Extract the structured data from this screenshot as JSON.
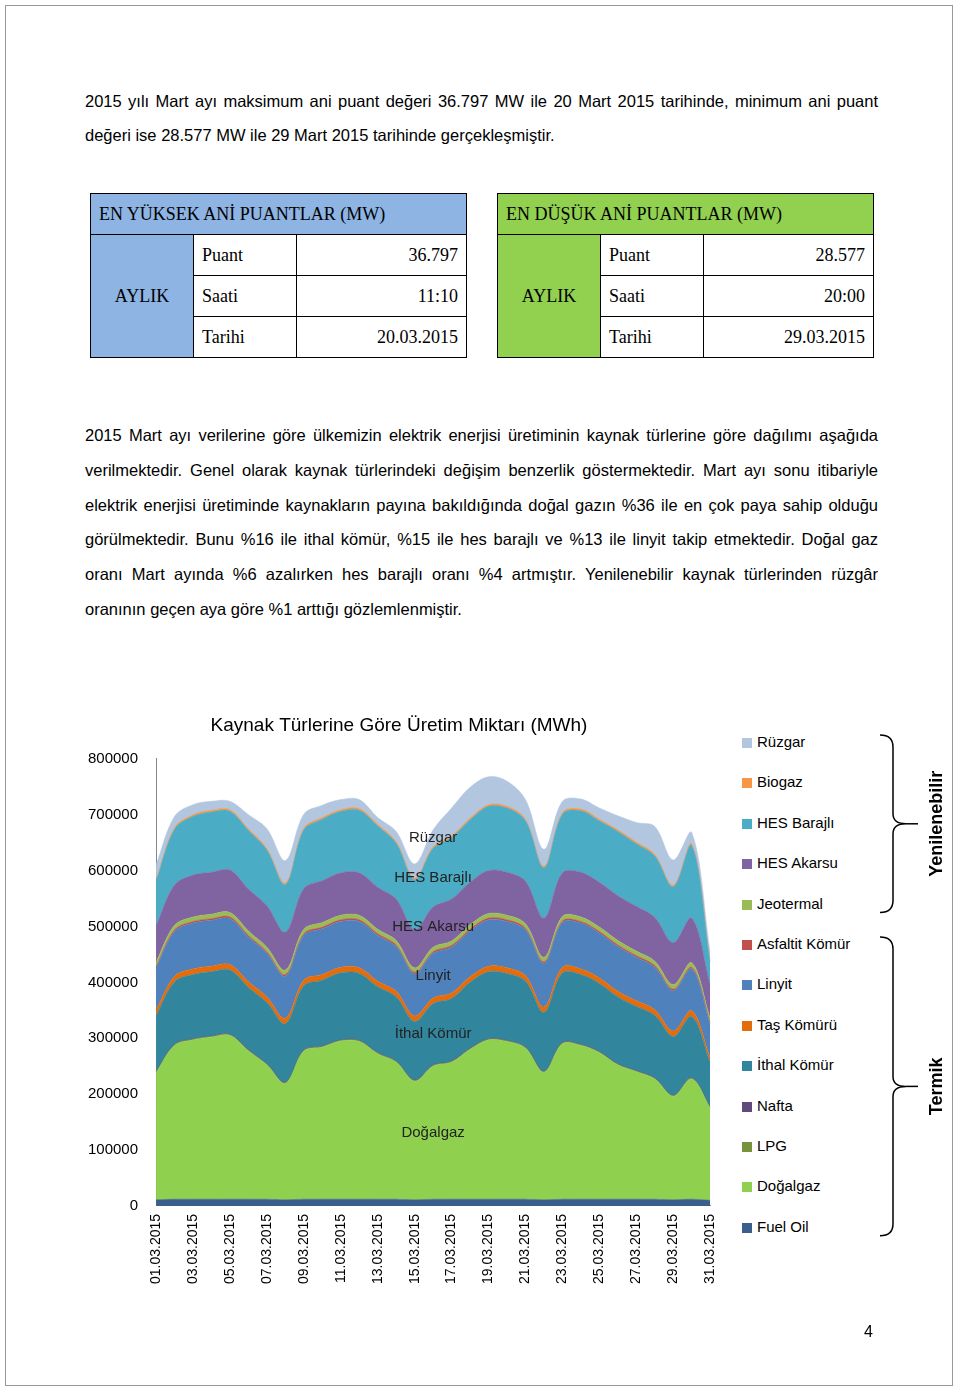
{
  "paragraphs": [
    "2015 yılı Mart ayı maksimum ani puant değeri 36.797 MW ile 20 Mart 2015 tarihinde, minimum ani puant değeri ise 28.577 MW ile 29 Mart 2015 tarihinde gerçekleşmiştir.",
    "2015 Mart ayı verilerine göre ülkemizin elektrik enerjisi üretiminin kaynak türlerine göre dağılımı aşağıda verilmektedir. Genel olarak kaynak türlerindeki değişim benzerlik göstermektedir. Mart ayı sonu itibariyle elektrik enerjisi üretiminde kaynakların payına bakıldığında doğal gazın %36 ile en çok paya sahip olduğu görülmektedir. Bunu %16 ile ithal kömür, %15 ile hes barajlı ve %13 ile linyit takip etmektedir. Doğal gaz oranı Mart ayında %6 azalırken hes barajlı oranı %4 artmıştır. Yenilenebilir kaynak türlerinden rüzgâr oranının geçen aya göre %1 arttığı gözlemlenmiştir."
  ],
  "tables": [
    {
      "title": "EN  YÜKSEK ANİ PUANTLAR (MW)",
      "row_header": "AYLIK",
      "rows": [
        [
          "Puant",
          "36.797"
        ],
        [
          "Saati",
          "11:10"
        ],
        [
          "Tarihi",
          "20.03.2015"
        ]
      ]
    },
    {
      "title": "EN  DÜŞÜK ANİ PUANTLAR (MW)",
      "row_header": "AYLIK",
      "rows": [
        [
          "Puant",
          "28.577"
        ],
        [
          "Saati",
          "20:00"
        ],
        [
          "Tarihi",
          "29.03.2015"
        ]
      ]
    }
  ],
  "chart_data": {
    "type": "area",
    "title": "Kaynak Türlerine Göre Üretim Miktarı (MWh)",
    "stacked": true,
    "grid": false,
    "legend": "right",
    "categories": [
      "01.03.2015",
      null,
      "03.03.2015",
      null,
      "05.03.2015",
      null,
      "07.03.2015",
      null,
      "09.03.2015",
      null,
      "11.03.2015",
      null,
      "13.03.2015",
      null,
      "15.03.2015",
      null,
      "17.03.2015",
      null,
      "19.03.2015",
      null,
      "21.03.2015",
      null,
      "23.03.2015",
      null,
      "25.03.2015",
      null,
      "27.03.2015",
      null,
      "29.03.2015",
      null,
      "31.03.2015"
    ],
    "ylim": [
      0,
      800000
    ],
    "yticks": [
      0,
      100000,
      200000,
      300000,
      400000,
      500000,
      600000,
      700000,
      800000
    ],
    "annotations": [
      "Rüzgar",
      "HES Barajlı",
      "HES Akarsu",
      "Linyit",
      "İthal Kömür",
      "Doğalgaz"
    ],
    "series": [
      {
        "name": "Fuel Oil",
        "color": "#3b5e8c",
        "values": [
          11000,
          12000,
          12000,
          12000,
          12000,
          12000,
          12000,
          11000,
          12000,
          12000,
          12000,
          12000,
          12000,
          12000,
          11000,
          12000,
          12000,
          12000,
          12000,
          12000,
          12000,
          11000,
          12000,
          12000,
          12000,
          12000,
          12000,
          12000,
          11000,
          12000,
          10000
        ]
      },
      {
        "name": "Doğalgaz",
        "color": "#8fd14f",
        "values": [
          227000,
          275000,
          285000,
          290000,
          293000,
          265000,
          240000,
          208000,
          265000,
          272000,
          283000,
          282000,
          260000,
          245000,
          212000,
          238000,
          245000,
          268000,
          285000,
          282000,
          270000,
          228000,
          278000,
          275000,
          262000,
          240000,
          228000,
          215000,
          185000,
          215000,
          165000
        ]
      },
      {
        "name": "LPG",
        "color": "#77933c",
        "values": [
          1000,
          1000,
          1000,
          1000,
          1000,
          1000,
          1000,
          1000,
          1000,
          1000,
          1000,
          1000,
          1000,
          1000,
          1000,
          1000,
          1000,
          1000,
          1000,
          1000,
          1000,
          1000,
          1000,
          1000,
          1000,
          1000,
          1000,
          1000,
          1000,
          1000,
          1000
        ]
      },
      {
        "name": "Nafta",
        "color": "#604a7b",
        "values": [
          1000,
          1000,
          1000,
          1000,
          1000,
          1000,
          1000,
          1000,
          1000,
          1000,
          1000,
          1000,
          1000,
          1000,
          1000,
          1000,
          1000,
          1000,
          1000,
          1000,
          1000,
          1000,
          1000,
          1000,
          1000,
          1000,
          1000,
          1000,
          1000,
          1000,
          1000
        ]
      },
      {
        "name": "İthal Kömür",
        "color": "#31859c",
        "values": [
          100000,
          112000,
          115000,
          115000,
          115000,
          112000,
          110000,
          105000,
          115000,
          118000,
          120000,
          120000,
          118000,
          115000,
          105000,
          110000,
          112000,
          118000,
          120000,
          120000,
          118000,
          105000,
          125000,
          125000,
          122000,
          120000,
          115000,
          112000,
          105000,
          110000,
          80000
        ]
      },
      {
        "name": "Taş Kömürü",
        "color": "#e46c0a",
        "values": [
          10000,
          10000,
          10000,
          10000,
          10000,
          10000,
          10000,
          10000,
          10000,
          10000,
          10000,
          10000,
          10000,
          10000,
          10000,
          10000,
          10000,
          10000,
          10000,
          10000,
          10000,
          10000,
          10000,
          10000,
          10000,
          10000,
          10000,
          10000,
          10000,
          10000,
          8000
        ]
      },
      {
        "name": "Linyit",
        "color": "#4f81bd",
        "values": [
          75000,
          80000,
          82000,
          82000,
          82000,
          80000,
          78000,
          75000,
          80000,
          82000,
          82000,
          83000,
          82000,
          80000,
          75000,
          80000,
          82000,
          82000,
          83000,
          83000,
          82000,
          78000,
          80000,
          82000,
          80000,
          80000,
          78000,
          76000,
          72000,
          75000,
          60000
        ]
      },
      {
        "name": "Asfaltit Kömür",
        "color": "#c0504d",
        "values": [
          3000,
          3000,
          3000,
          3000,
          3000,
          3000,
          3000,
          3000,
          3000,
          3000,
          3000,
          3000,
          3000,
          3000,
          3000,
          3000,
          3000,
          3000,
          3000,
          3000,
          3000,
          3000,
          3000,
          3000,
          3000,
          3000,
          3000,
          3000,
          3000,
          3000,
          3000
        ]
      },
      {
        "name": "Jeotermal",
        "color": "#9bbb59",
        "values": [
          8000,
          8000,
          8000,
          8000,
          8000,
          8000,
          8000,
          8000,
          8000,
          8000,
          8000,
          8000,
          8000,
          8000,
          8000,
          8000,
          8000,
          8000,
          8000,
          8000,
          8000,
          8000,
          8000,
          8000,
          8000,
          8000,
          8000,
          8000,
          8000,
          8000,
          8000
        ]
      },
      {
        "name": "HES Akarsu",
        "color": "#8064a2",
        "values": [
          65000,
          72000,
          75000,
          75000,
          76000,
          75000,
          74000,
          68000,
          73000,
          75000,
          76000,
          76000,
          75000,
          74000,
          68000,
          72000,
          75000,
          76000,
          77000,
          77000,
          76000,
          70000,
          78000,
          80000,
          80000,
          80000,
          80000,
          78000,
          75000,
          80000,
          60000
        ]
      },
      {
        "name": "HES Barajlı",
        "color": "#4bacc6",
        "values": [
          80000,
          100000,
          105000,
          108000,
          105000,
          105000,
          100000,
          85000,
          105000,
          110000,
          110000,
          112000,
          110000,
          100000,
          90000,
          105000,
          110000,
          112000,
          115000,
          115000,
          108000,
          90000,
          105000,
          110000,
          110000,
          115000,
          112000,
          110000,
          100000,
          130000,
          40000
        ]
      },
      {
        "name": "Biogaz",
        "color": "#f79646",
        "values": [
          3000,
          3000,
          3000,
          3000,
          3000,
          3000,
          3000,
          3000,
          3000,
          3000,
          3000,
          3000,
          3000,
          3000,
          3000,
          3000,
          3000,
          3000,
          3000,
          3000,
          3000,
          3000,
          3000,
          3000,
          3000,
          3000,
          3000,
          3000,
          3000,
          3000,
          3000
        ]
      },
      {
        "name": "Rüzgar",
        "color": "#b3c6e0",
        "values": [
          26000,
          20000,
          18000,
          16000,
          15000,
          25000,
          35000,
          40000,
          25000,
          22000,
          18000,
          16000,
          12000,
          18000,
          25000,
          30000,
          50000,
          55000,
          50000,
          45000,
          35000,
          30000,
          20000,
          18000,
          20000,
          25000,
          35000,
          50000,
          45000,
          20000,
          15000
        ]
      }
    ]
  },
  "legend_groups": [
    {
      "label": "Yenilenebilir",
      "members": [
        "Rüzgar",
        "Biogaz",
        "HES Barajlı",
        "HES Akarsu",
        "Jeotermal"
      ]
    },
    {
      "label": "Termik",
      "members": [
        "Asfaltit Kömür",
        "Linyit",
        "Taş Kömürü",
        "İthal Kömür",
        "Nafta",
        "LPG",
        "Doğalgaz",
        "Fuel Oil"
      ]
    }
  ],
  "page_number": "4"
}
